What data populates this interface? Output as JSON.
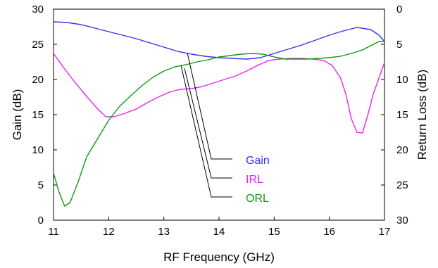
{
  "chart_data": {
    "type": "line",
    "xlabel": "RF Frequency (GHz)",
    "ylabel_left": "Gain (dB)",
    "ylabel_right": "Return Loss (dB)",
    "xlim": [
      11,
      17
    ],
    "ylim_left": [
      0,
      30
    ],
    "ylim_right": [
      0,
      30
    ],
    "right_axis_inverted": true,
    "grid": false,
    "x_ticks": [
      "11",
      "12",
      "13",
      "14",
      "15",
      "16",
      "17"
    ],
    "y_left_ticks": [
      "0",
      "5",
      "10",
      "15",
      "20",
      "25",
      "30"
    ],
    "y_right_ticks": [
      "0",
      "5",
      "10",
      "15",
      "20",
      "25",
      "30"
    ],
    "series": [
      {
        "name": "Gain",
        "axis": "left",
        "color": "#3333ee",
        "points": [
          [
            11.0,
            28.2
          ],
          [
            11.25,
            28.1
          ],
          [
            11.5,
            27.8
          ],
          [
            11.75,
            27.3
          ],
          [
            12.0,
            26.8
          ],
          [
            12.25,
            26.3
          ],
          [
            12.5,
            25.8
          ],
          [
            12.75,
            25.2
          ],
          [
            13.0,
            24.6
          ],
          [
            13.25,
            24.0
          ],
          [
            13.5,
            23.6
          ],
          [
            13.75,
            23.3
          ],
          [
            14.0,
            23.1
          ],
          [
            14.25,
            23.0
          ],
          [
            14.5,
            22.9
          ],
          [
            14.75,
            23.1
          ],
          [
            15.0,
            23.7
          ],
          [
            15.25,
            24.3
          ],
          [
            15.5,
            24.9
          ],
          [
            15.75,
            25.6
          ],
          [
            16.0,
            26.3
          ],
          [
            16.25,
            26.9
          ],
          [
            16.5,
            27.4
          ],
          [
            16.75,
            27.1
          ],
          [
            16.9,
            26.3
          ],
          [
            17.0,
            25.4
          ]
        ]
      },
      {
        "name": "IRL",
        "axis": "right",
        "color": "#ee22ee",
        "points": [
          [
            11.0,
            6.3
          ],
          [
            11.2,
            8.5
          ],
          [
            11.4,
            10.5
          ],
          [
            11.6,
            12.4
          ],
          [
            11.8,
            14.2
          ],
          [
            11.95,
            15.3
          ],
          [
            12.1,
            15.3
          ],
          [
            12.3,
            14.8
          ],
          [
            12.5,
            14.2
          ],
          [
            12.7,
            13.3
          ],
          [
            12.9,
            12.5
          ],
          [
            13.1,
            11.8
          ],
          [
            13.3,
            11.4
          ],
          [
            13.5,
            11.3
          ],
          [
            13.7,
            11.0
          ],
          [
            13.9,
            10.5
          ],
          [
            14.1,
            10.0
          ],
          [
            14.3,
            9.5
          ],
          [
            14.5,
            8.8
          ],
          [
            14.7,
            8.0
          ],
          [
            14.9,
            7.3
          ],
          [
            15.1,
            7.1
          ],
          [
            15.3,
            7.0
          ],
          [
            15.5,
            7.0
          ],
          [
            15.7,
            7.1
          ],
          [
            15.9,
            7.3
          ],
          [
            16.05,
            8.0
          ],
          [
            16.2,
            9.7
          ],
          [
            16.3,
            12.1
          ],
          [
            16.4,
            15.6
          ],
          [
            16.5,
            17.5
          ],
          [
            16.6,
            17.6
          ],
          [
            16.7,
            15.0
          ],
          [
            16.8,
            12.0
          ],
          [
            16.9,
            9.8
          ],
          [
            17.0,
            7.6
          ]
        ]
      },
      {
        "name": "ORL",
        "axis": "right",
        "color": "#119911",
        "points": [
          [
            11.0,
            23.3
          ],
          [
            11.1,
            26.0
          ],
          [
            11.2,
            28.0
          ],
          [
            11.3,
            27.5
          ],
          [
            11.45,
            24.5
          ],
          [
            11.6,
            21.0
          ],
          [
            11.8,
            18.4
          ],
          [
            12.0,
            15.8
          ],
          [
            12.2,
            13.8
          ],
          [
            12.4,
            12.3
          ],
          [
            12.6,
            10.9
          ],
          [
            12.8,
            9.7
          ],
          [
            13.0,
            8.8
          ],
          [
            13.2,
            8.2
          ],
          [
            13.4,
            7.9
          ],
          [
            13.6,
            7.5
          ],
          [
            13.8,
            7.2
          ],
          [
            14.0,
            6.8
          ],
          [
            14.2,
            6.6
          ],
          [
            14.4,
            6.4
          ],
          [
            14.6,
            6.3
          ],
          [
            14.8,
            6.4
          ],
          [
            15.0,
            6.8
          ],
          [
            15.2,
            7.1
          ],
          [
            15.4,
            7.1
          ],
          [
            15.6,
            7.1
          ],
          [
            15.8,
            7.0
          ],
          [
            16.0,
            6.9
          ],
          [
            16.2,
            6.7
          ],
          [
            16.4,
            6.3
          ],
          [
            16.6,
            5.8
          ],
          [
            16.8,
            5.0
          ],
          [
            16.9,
            4.6
          ],
          [
            17.0,
            4.6
          ]
        ]
      }
    ],
    "legend": [
      {
        "label": "Gain",
        "color": "#3333ee"
      },
      {
        "label": "IRL",
        "color": "#ee22ee"
      },
      {
        "label": "ORL",
        "color": "#119911"
      }
    ],
    "legend_placement": "center"
  }
}
